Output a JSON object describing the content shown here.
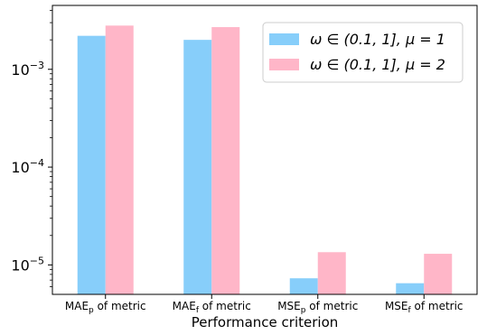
{
  "chart_data": {
    "type": "bar",
    "title": "",
    "xlabel": "Performance criterion",
    "ylabel": "",
    "yscale": "log",
    "ylim": [
      5e-06,
      0.0045
    ],
    "yticks": [
      {
        "value": 1e-05,
        "base": "10",
        "exp": "−5"
      },
      {
        "value": 0.0001,
        "base": "10",
        "exp": "−4"
      },
      {
        "value": 0.001,
        "base": "10",
        "exp": "−3"
      }
    ],
    "categories": [
      {
        "main": "MAE",
        "sub": "p",
        "rest": " of metric"
      },
      {
        "main": "MAE",
        "sub": "f",
        "rest": " of metric"
      },
      {
        "main": "MSE",
        "sub": "p",
        "rest": " of metric"
      },
      {
        "main": "MSE",
        "sub": "f",
        "rest": " of metric"
      }
    ],
    "series": [
      {
        "name": "ω ∈ (0.1, 1], μ = 1",
        "color": "#87cefa",
        "values": [
          0.0022,
          0.002,
          7.3e-06,
          6.5e-06
        ]
      },
      {
        "name": "ω ∈ (0.1, 1], μ = 2",
        "color": "#ffb6c8",
        "values": [
          0.0028,
          0.0027,
          1.35e-05,
          1.3e-05
        ]
      }
    ],
    "legend_position": "top-right",
    "grid": false
  }
}
